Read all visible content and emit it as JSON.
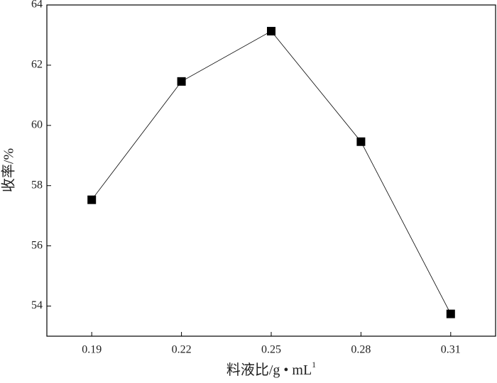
{
  "chart_data": {
    "type": "line",
    "x": [
      0.19,
      0.22,
      0.25,
      0.28,
      0.31
    ],
    "series": [
      {
        "values": [
          57.53,
          61.46,
          63.13,
          59.46,
          53.74
        ],
        "color": "#000000"
      }
    ],
    "xlabel": "料液比/g • mL",
    "xlabel_sup": "1",
    "ylabel": "收率/%",
    "xlim": [
      0.175,
      0.325
    ],
    "ylim": [
      53,
      64
    ],
    "xticks": [
      0.19,
      0.22,
      0.25,
      0.28,
      0.31
    ],
    "yticks": [
      54,
      56,
      58,
      60,
      62,
      64
    ]
  }
}
